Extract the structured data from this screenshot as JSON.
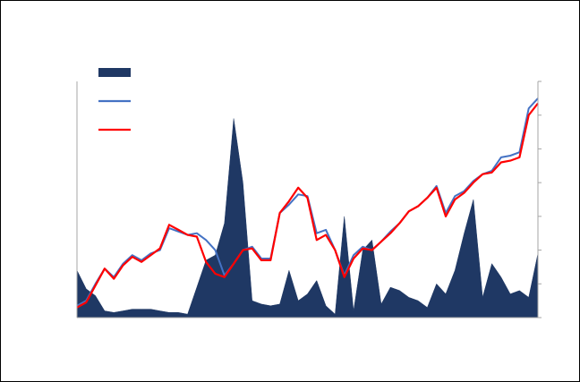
{
  "chart_data": {
    "type": "area",
    "title": "",
    "xlabel": "",
    "ylabel": "",
    "grid": false,
    "legend_position": "top-left",
    "ylim": [
      0,
      7
    ],
    "y2lim": [
      0,
      7
    ],
    "y_ticks": [
      0,
      1,
      2,
      3,
      4,
      5,
      6,
      7
    ],
    "x": [
      0,
      2,
      4,
      6,
      8,
      10,
      12,
      14,
      16,
      18,
      20,
      22,
      24,
      26,
      28,
      30,
      32,
      34,
      36,
      38,
      40,
      42,
      44,
      46,
      48,
      50,
      52,
      54,
      56,
      58,
      60,
      62,
      64,
      66,
      68,
      70,
      72,
      74,
      76,
      78,
      80,
      82,
      84,
      86,
      88,
      90,
      92,
      94,
      96,
      98,
      100
    ],
    "series": [
      {
        "name": "",
        "kind": "area",
        "axis": "left",
        "color": "#1f3864",
        "values": [
          1.4,
          0.85,
          0.65,
          0.2,
          0.15,
          0.2,
          0.25,
          0.25,
          0.25,
          0.2,
          0.15,
          0.15,
          0.1,
          0.9,
          1.7,
          1.85,
          2.8,
          5.9,
          4.0,
          0.5,
          0.4,
          0.35,
          0.4,
          1.4,
          0.5,
          0.7,
          1.1,
          0.35,
          0.1,
          3.0,
          0.2,
          2.0,
          2.3,
          0.4,
          0.9,
          0.8,
          0.6,
          0.5,
          0.3,
          1.0,
          0.7,
          1.4,
          2.5,
          3.5,
          0.6,
          1.6,
          1.2,
          0.7,
          0.8,
          0.6,
          1.9
        ]
      },
      {
        "name": "",
        "kind": "line",
        "axis": "right",
        "color": "#4472c4",
        "values": [
          0.35,
          0.5,
          1.0,
          1.45,
          1.2,
          1.6,
          1.85,
          1.7,
          1.9,
          2.0,
          2.65,
          2.55,
          2.45,
          2.5,
          2.3,
          2.0,
          1.25,
          1.6,
          2.0,
          2.1,
          1.75,
          1.75,
          3.1,
          3.35,
          3.65,
          3.6,
          2.5,
          2.6,
          2.0,
          1.25,
          1.85,
          2.1,
          2.0,
          2.25,
          2.55,
          2.8,
          3.15,
          3.3,
          3.55,
          3.9,
          3.1,
          3.6,
          3.75,
          4.05,
          4.25,
          4.35,
          4.75,
          4.8,
          4.9,
          6.2,
          6.5
        ]
      },
      {
        "name": "",
        "kind": "line",
        "axis": "right",
        "color": "#ff0000",
        "values": [
          0.3,
          0.45,
          0.95,
          1.45,
          1.15,
          1.55,
          1.8,
          1.65,
          1.85,
          2.05,
          2.75,
          2.6,
          2.45,
          2.4,
          1.65,
          1.3,
          1.2,
          1.6,
          2.0,
          2.05,
          1.7,
          1.7,
          3.1,
          3.45,
          3.85,
          3.55,
          2.3,
          2.45,
          2.0,
          1.2,
          1.75,
          2.05,
          2.0,
          2.25,
          2.5,
          2.8,
          3.15,
          3.3,
          3.55,
          3.85,
          3.0,
          3.5,
          3.7,
          4.0,
          4.25,
          4.3,
          4.6,
          4.65,
          4.75,
          6.0,
          6.35
        ]
      }
    ]
  }
}
